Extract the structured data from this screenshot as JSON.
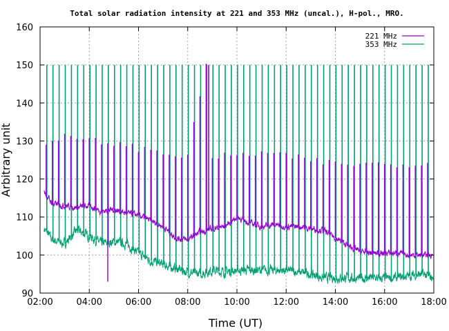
{
  "chart_data": {
    "type": "line",
    "title": "Total solar radiation intensity at 221 and 353 MHz (uncal.), H-pol., MRO.",
    "xlabel": "Time (UT)",
    "ylabel": "Arbitrary unit",
    "xlim": [
      "02:00",
      "18:00"
    ],
    "ylim": [
      90,
      160
    ],
    "x_tick_labels": [
      "02:00",
      "04:00",
      "06:00",
      "08:00",
      "10:00",
      "12:00",
      "14:00",
      "16:00",
      "18:00"
    ],
    "y_tick_labels": [
      "90",
      "100",
      "110",
      "120",
      "130",
      "140",
      "150",
      "160"
    ],
    "grid": true,
    "legend_position": "top-right",
    "spike_interval_minutes": 15,
    "series": [
      {
        "name": "221 MHz",
        "color": "#9400d3",
        "baseline": [
          [
            "02:10",
            116.5
          ],
          [
            "02:30",
            113.5
          ],
          [
            "03:00",
            113.0
          ],
          [
            "03:30",
            112.5
          ],
          [
            "04:00",
            113.0
          ],
          [
            "04:30",
            111.5
          ],
          [
            "05:00",
            112.0
          ],
          [
            "05:30",
            111.0
          ],
          [
            "06:00",
            110.5
          ],
          [
            "06:30",
            109.0
          ],
          [
            "07:00",
            107.5
          ],
          [
            "07:30",
            104.5
          ],
          [
            "08:00",
            104.0
          ],
          [
            "08:30",
            106.0
          ],
          [
            "09:00",
            107.0
          ],
          [
            "09:30",
            107.5
          ],
          [
            "10:00",
            110.0
          ],
          [
            "10:30",
            108.5
          ],
          [
            "11:00",
            107.5
          ],
          [
            "11:30",
            108.0
          ],
          [
            "12:00",
            107.5
          ],
          [
            "12:30",
            107.5
          ],
          [
            "13:00",
            107.0
          ],
          [
            "13:30",
            106.5
          ],
          [
            "14:00",
            104.5
          ],
          [
            "14:30",
            102.5
          ],
          [
            "15:00",
            101.0
          ],
          [
            "15:30",
            100.5
          ],
          [
            "16:00",
            100.5
          ],
          [
            "16:30",
            100.5
          ],
          [
            "17:00",
            100.0
          ],
          [
            "17:30",
            100.0
          ],
          [
            "17:58",
            100.0
          ]
        ],
        "spike_peaks": [
          [
            "02:15",
            130
          ],
          [
            "03:00",
            131
          ],
          [
            "04:00",
            130
          ],
          [
            "05:00",
            129.5
          ],
          [
            "06:00",
            128
          ],
          [
            "07:00",
            127
          ],
          [
            "08:00",
            126
          ],
          [
            "08:45",
            150
          ],
          [
            "09:00",
            126
          ],
          [
            "10:00",
            126
          ],
          [
            "11:00",
            127
          ],
          [
            "12:00",
            126
          ],
          [
            "13:00",
            125
          ],
          [
            "14:00",
            124
          ],
          [
            "15:00",
            124
          ],
          [
            "16:00",
            124
          ],
          [
            "17:00",
            124
          ],
          [
            "17:58",
            124
          ]
        ],
        "spike_depths": [
          [
            "04:45",
            93
          ]
        ]
      },
      {
        "name": "353 MHz",
        "color": "#009e73",
        "baseline": [
          [
            "02:10",
            107.0
          ],
          [
            "02:30",
            104.0
          ],
          [
            "03:00",
            103.0
          ],
          [
            "03:30",
            106.5
          ],
          [
            "04:00",
            105.0
          ],
          [
            "04:30",
            103.0
          ],
          [
            "05:00",
            103.5
          ],
          [
            "05:30",
            103.0
          ],
          [
            "06:00",
            100.5
          ],
          [
            "06:30",
            98.5
          ],
          [
            "07:00",
            97.5
          ],
          [
            "07:30",
            96.5
          ],
          [
            "08:00",
            95.5
          ],
          [
            "08:30",
            95.0
          ],
          [
            "09:00",
            96.0
          ],
          [
            "09:30",
            95.5
          ],
          [
            "10:00",
            96.0
          ],
          [
            "10:30",
            96.0
          ],
          [
            "11:00",
            96.0
          ],
          [
            "11:30",
            96.0
          ],
          [
            "12:00",
            96.0
          ],
          [
            "12:30",
            95.5
          ],
          [
            "13:00",
            95.0
          ],
          [
            "13:30",
            94.0
          ],
          [
            "14:00",
            94.0
          ],
          [
            "14:30",
            94.0
          ],
          [
            "15:00",
            93.8
          ],
          [
            "15:30",
            94.0
          ],
          [
            "16:00",
            93.8
          ],
          [
            "16:30",
            94.0
          ],
          [
            "17:00",
            94.5
          ],
          [
            "17:30",
            95.0
          ],
          [
            "17:58",
            94.0
          ]
        ],
        "spike_peak": 150
      }
    ]
  }
}
